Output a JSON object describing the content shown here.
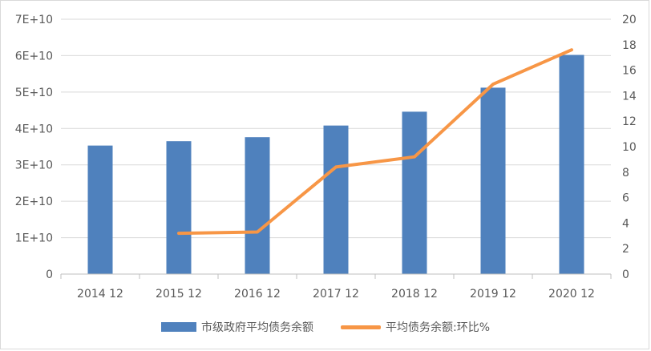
{
  "chart_data": {
    "type": "bar",
    "categories": [
      "2014 12",
      "2015 12",
      "2016 12",
      "2017 12",
      "2018 12",
      "2019 12",
      "2020 12"
    ],
    "series": [
      {
        "name": "市级政府平均债务余额",
        "type": "bar",
        "axis": "left",
        "color": "#4f81bd",
        "values": [
          35300000000,
          36500000000,
          37600000000,
          40800000000,
          44600000000,
          51200000000,
          60200000000
        ]
      },
      {
        "name": "平均债务余额:环比%",
        "type": "line",
        "axis": "right",
        "color": "#f79646",
        "values": [
          null,
          3.2,
          3.3,
          8.4,
          9.2,
          14.9,
          17.6
        ]
      }
    ],
    "left_axis": {
      "ylim": [
        0,
        70000000000
      ],
      "ticks": [
        "0",
        "1E+10",
        "2E+10",
        "3E+10",
        "4E+10",
        "5E+10",
        "6E+10",
        "7E+10"
      ]
    },
    "right_axis": {
      "ylim": [
        0,
        20
      ],
      "ticks": [
        "0",
        "2",
        "4",
        "6",
        "8",
        "10",
        "12",
        "14",
        "16",
        "18",
        "20"
      ]
    },
    "grid": true,
    "legend_position": "bottom"
  }
}
